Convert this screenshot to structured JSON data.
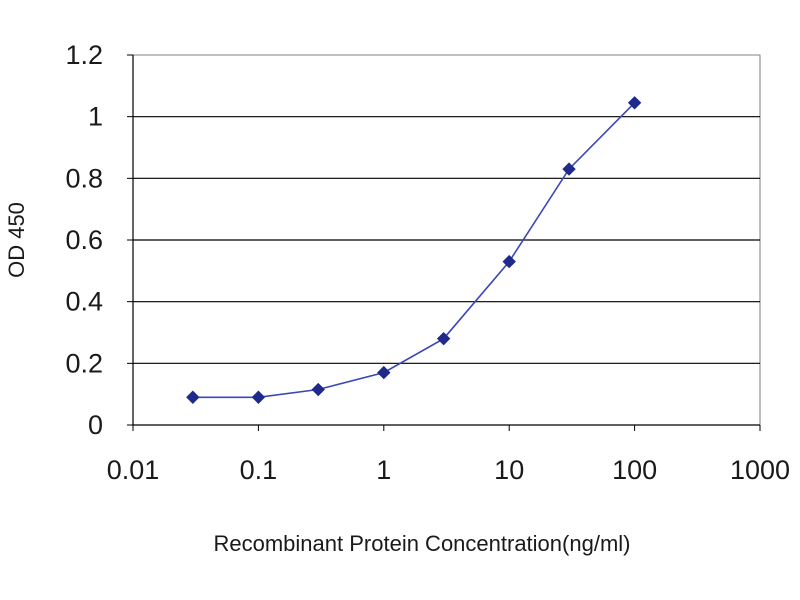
{
  "chart_data": {
    "type": "line",
    "title": "",
    "xlabel": "Recombinant Protein Concentration(ng/ml)",
    "ylabel": "OD 450",
    "x_scale": "log",
    "xlim": [
      0.01,
      1000
    ],
    "ylim": [
      0,
      1.2
    ],
    "x_ticks": [
      "0.01",
      "0.1",
      "1",
      "10",
      "100",
      "1000"
    ],
    "y_ticks": [
      "0",
      "0.2",
      "0.4",
      "0.6",
      "0.8",
      "1",
      "1.2"
    ],
    "grid": "horizontal",
    "legend": "none",
    "series": [
      {
        "color": "#1f2a8c",
        "x": [
          0.03,
          0.1,
          0.3,
          1,
          3,
          10,
          30,
          100
        ],
        "y": [
          0.09,
          0.09,
          0.115,
          0.17,
          0.28,
          0.53,
          0.83,
          1.045
        ]
      }
    ]
  }
}
